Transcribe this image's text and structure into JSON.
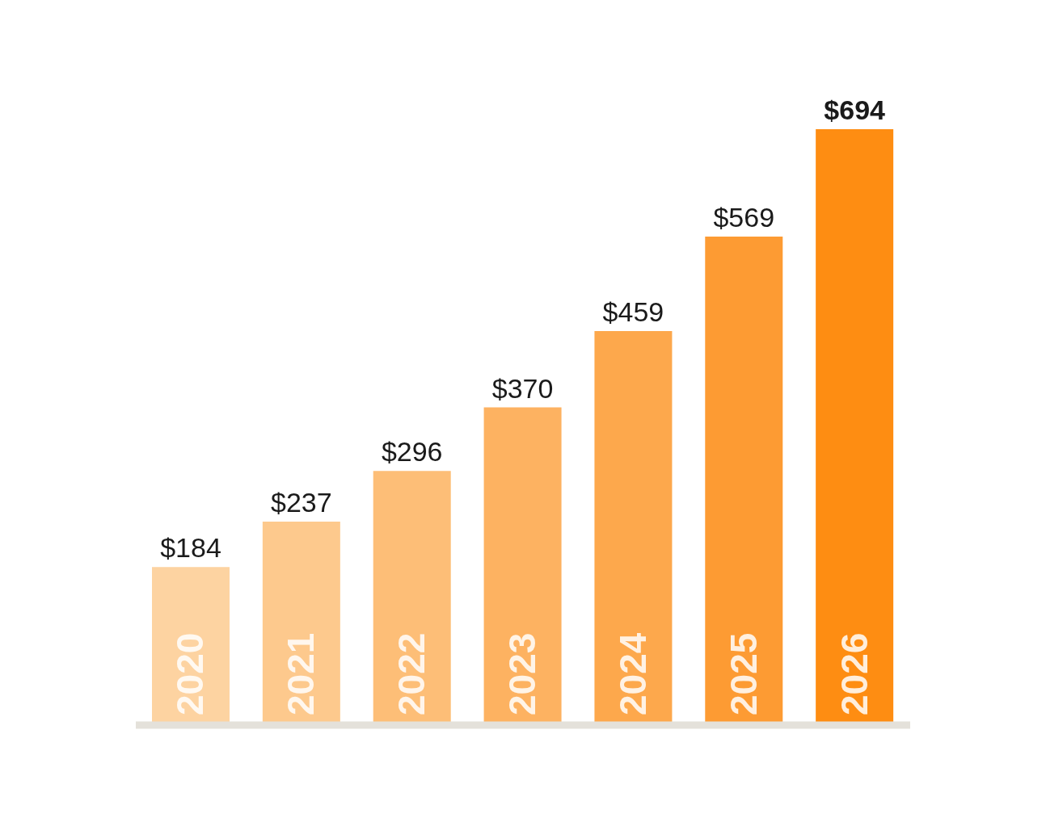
{
  "chart_data": {
    "type": "bar",
    "categories": [
      "2020",
      "2021",
      "2022",
      "2023",
      "2024",
      "2025",
      "2026"
    ],
    "values": [
      184,
      237,
      296,
      370,
      459,
      569,
      694
    ],
    "value_labels": [
      "$184",
      "$237",
      "$296",
      "$370",
      "$459",
      "$569",
      "$694"
    ],
    "colors": [
      "#fdd3a1",
      "#fdc98d",
      "#fdbe77",
      "#fdb261",
      "#fda84c",
      "#fd9b33",
      "#fe8d12"
    ]
  }
}
